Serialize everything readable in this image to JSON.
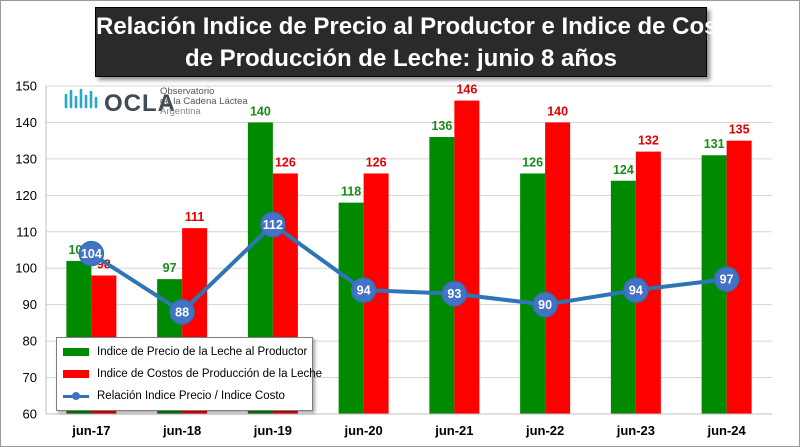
{
  "title": {
    "line1": "Relación Indice de Precio al Productor e Indice de Costo",
    "line2": "de Producción de Leche: junio 8 años"
  },
  "logo": {
    "name": "OCLA",
    "line1": "Observatorio",
    "line2": "de la Cadena Láctea",
    "line3": "Argentina"
  },
  "colors": {
    "price": "#008a00",
    "cost": "#ff0000",
    "ratio_line": "#2e75b6",
    "ratio_marker": "#4472c4",
    "price_label": "#1a8a1a",
    "cost_label": "#e00000"
  },
  "chart_data": {
    "type": "bar",
    "categories": [
      "jun-17",
      "jun-18",
      "jun-19",
      "jun-20",
      "jun-21",
      "jun-22",
      "jun-23",
      "jun-24"
    ],
    "series": [
      {
        "name": "Indice de Precio de la Leche al Productor",
        "type": "bar",
        "values": [
          102,
          97,
          140,
          118,
          136,
          126,
          124,
          131
        ]
      },
      {
        "name": "Indice de Costos de Producción de la Leche",
        "type": "bar",
        "values": [
          98,
          111,
          126,
          126,
          146,
          140,
          132,
          135
        ]
      },
      {
        "name": "Relación Indice Precio / Indice Costo",
        "type": "line",
        "values": [
          104,
          88,
          112,
          94,
          93,
          90,
          94,
          97
        ]
      }
    ],
    "y_ticks": [
      60,
      70,
      80,
      90,
      100,
      110,
      120,
      130,
      140,
      150
    ],
    "ylim": [
      60,
      150
    ],
    "grid": true,
    "legend_position": "bottom-left"
  }
}
